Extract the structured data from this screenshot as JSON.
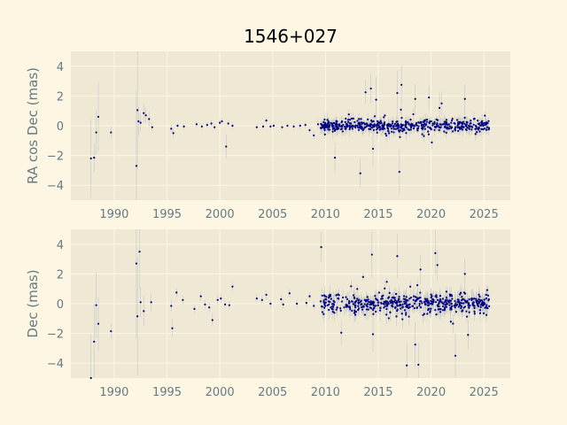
{
  "figure": {
    "title": "1546+027",
    "background": "#fdf6e3",
    "axes_face": "#eee8d5",
    "grid_color": "#fdf6e3",
    "point_color": "#000080",
    "errorbar_color": "#b7bcc0"
  },
  "chart_data": [
    {
      "type": "scatter",
      "ylabel": "RA cos Dec (mas)",
      "xlim": [
        1985.9,
        2027.5
      ],
      "ylim": [
        -5,
        5
      ],
      "grid": true,
      "xticks": [
        1990,
        1995,
        2000,
        2005,
        2010,
        2015,
        2020,
        2025
      ],
      "xtick_labels": [
        "1990",
        "1995",
        "2000",
        "2005",
        "2010",
        "2015",
        "2020",
        "2025"
      ],
      "yticks": [
        -4,
        -2,
        0,
        2,
        4
      ],
      "ytick_labels": [
        "−4",
        "−2",
        "0",
        "2",
        "4"
      ],
      "points": [
        {
          "x": 1987.8,
          "y": -2.2,
          "e": 2.6
        },
        {
          "x": 1988.1,
          "y": -2.15,
          "e": 1.0
        },
        {
          "x": 1988.3,
          "y": -0.45,
          "e": 1.5
        },
        {
          "x": 1988.5,
          "y": 0.6,
          "e": 2.3
        },
        {
          "x": 1989.7,
          "y": -0.45,
          "e": 0.4
        },
        {
          "x": 1992.1,
          "y": -2.7,
          "e": 5.0
        },
        {
          "x": 1992.2,
          "y": 1.05,
          "e": 4.0
        },
        {
          "x": 1992.3,
          "y": 0.3,
          "e": 1.0
        },
        {
          "x": 1992.5,
          "y": 0.2,
          "e": 0.6
        },
        {
          "x": 1992.8,
          "y": 0.85,
          "e": 0.6
        },
        {
          "x": 1993.0,
          "y": 0.7,
          "e": 0.5
        },
        {
          "x": 1993.3,
          "y": 0.45,
          "e": 0.5
        },
        {
          "x": 1993.6,
          "y": -0.1,
          "e": 0.3
        },
        {
          "x": 1995.4,
          "y": -0.2,
          "e": 0.3
        },
        {
          "x": 1995.6,
          "y": -0.5,
          "e": 0.3
        },
        {
          "x": 1996.0,
          "y": 0.0,
          "e": 0.2
        },
        {
          "x": 1996.6,
          "y": -0.05,
          "e": 0.2
        },
        {
          "x": 1997.8,
          "y": 0.1,
          "e": 0.2
        },
        {
          "x": 1998.3,
          "y": -0.05,
          "e": 0.2
        },
        {
          "x": 1998.8,
          "y": 0.05,
          "e": 0.2
        },
        {
          "x": 1999.2,
          "y": 0.15,
          "e": 0.2
        },
        {
          "x": 1999.5,
          "y": -0.1,
          "e": 0.2
        },
        {
          "x": 2000.0,
          "y": 0.2,
          "e": 0.2
        },
        {
          "x": 2000.2,
          "y": 0.3,
          "e": 0.2
        },
        {
          "x": 2000.6,
          "y": -1.4,
          "e": 0.8
        },
        {
          "x": 2000.8,
          "y": 0.15,
          "e": 0.2
        },
        {
          "x": 2001.2,
          "y": 0.0,
          "e": 0.2
        },
        {
          "x": 2003.5,
          "y": -0.1,
          "e": 0.2
        },
        {
          "x": 2004.1,
          "y": -0.05,
          "e": 0.2
        },
        {
          "x": 2004.4,
          "y": 0.35,
          "e": 0.2
        },
        {
          "x": 2004.8,
          "y": -0.05,
          "e": 0.2
        },
        {
          "x": 2005.1,
          "y": 0.0,
          "e": 0.2
        },
        {
          "x": 2005.9,
          "y": -0.1,
          "e": 0.2
        },
        {
          "x": 2006.4,
          "y": 0.0,
          "e": 0.2
        },
        {
          "x": 2007.0,
          "y": -0.05,
          "e": 0.2
        },
        {
          "x": 2007.6,
          "y": 0.0,
          "e": 0.2
        },
        {
          "x": 2008.1,
          "y": 0.05,
          "e": 0.2
        },
        {
          "x": 2008.5,
          "y": -0.3,
          "e": 0.2
        },
        {
          "x": 2008.9,
          "y": -0.65,
          "e": 0.3
        },
        {
          "x": 2009.3,
          "y": 0.1,
          "e": 0.3
        },
        {
          "x": 2010.9,
          "y": -2.15,
          "e": 1.0
        },
        {
          "x": 2013.3,
          "y": -3.2,
          "e": 1.0
        },
        {
          "x": 2013.8,
          "y": 2.25,
          "e": 0.8
        },
        {
          "x": 2014.3,
          "y": 2.5,
          "e": 1.0
        },
        {
          "x": 2014.5,
          "y": -1.55,
          "e": 1.2
        },
        {
          "x": 2014.8,
          "y": 1.75,
          "e": 1.5
        },
        {
          "x": 2016.8,
          "y": 2.2,
          "e": 1.5
        },
        {
          "x": 2017.0,
          "y": -3.1,
          "e": 1.5
        },
        {
          "x": 2017.2,
          "y": 2.75,
          "e": 1.3
        },
        {
          "x": 2018.5,
          "y": 1.8,
          "e": 1.0
        },
        {
          "x": 2019.8,
          "y": 1.9,
          "e": 0.8
        },
        {
          "x": 2020.8,
          "y": 1.2,
          "e": 1.0
        },
        {
          "x": 2021.0,
          "y": 1.5,
          "e": 0.8
        },
        {
          "x": 2023.2,
          "y": 1.8,
          "e": 1.0
        }
      ],
      "dense_data": {
        "x_start": 2009.5,
        "x_end": 2025.5,
        "count": 520,
        "spread": 0.18,
        "error": 0.35,
        "seed": 7
      }
    },
    {
      "type": "scatter",
      "ylabel": "Dec (mas)",
      "xlim": [
        1985.9,
        2027.5
      ],
      "ylim": [
        -5,
        5
      ],
      "grid": true,
      "xticks": [
        1990,
        1995,
        2000,
        2005,
        2010,
        2015,
        2020,
        2025
      ],
      "xtick_labels": [
        "1990",
        "1995",
        "2000",
        "2005",
        "2010",
        "2015",
        "2020",
        "2025"
      ],
      "yticks": [
        -4,
        -2,
        0,
        2,
        4
      ],
      "ytick_labels": [
        "−4",
        "−2",
        "0",
        "2",
        "4"
      ],
      "points": [
        {
          "x": 1987.8,
          "y": -5.0,
          "e": 3.0
        },
        {
          "x": 1988.1,
          "y": -2.55,
          "e": 2.6
        },
        {
          "x": 1988.3,
          "y": -0.1,
          "e": 2.2
        },
        {
          "x": 1988.5,
          "y": -1.35,
          "e": 1.8
        },
        {
          "x": 1989.7,
          "y": -1.85,
          "e": 0.5
        },
        {
          "x": 1992.1,
          "y": 2.7,
          "e": 5.0
        },
        {
          "x": 1992.2,
          "y": -0.85,
          "e": 4.0
        },
        {
          "x": 1992.4,
          "y": 3.5,
          "e": 2.5
        },
        {
          "x": 1992.5,
          "y": 0.1,
          "e": 1.0
        },
        {
          "x": 1992.8,
          "y": -0.5,
          "e": 1.0
        },
        {
          "x": 1993.5,
          "y": 0.1,
          "e": 0.6
        },
        {
          "x": 1995.4,
          "y": -0.15,
          "e": 0.4
        },
        {
          "x": 1995.5,
          "y": -1.65,
          "e": 0.6
        },
        {
          "x": 1995.9,
          "y": 0.75,
          "e": 0.3
        },
        {
          "x": 1996.5,
          "y": 0.25,
          "e": 0.3
        },
        {
          "x": 1997.6,
          "y": -0.35,
          "e": 0.3
        },
        {
          "x": 1998.2,
          "y": 0.5,
          "e": 0.3
        },
        {
          "x": 1998.6,
          "y": -0.05,
          "e": 0.3
        },
        {
          "x": 1999.0,
          "y": -0.25,
          "e": 0.3
        },
        {
          "x": 1999.3,
          "y": -1.1,
          "e": 0.4
        },
        {
          "x": 1999.8,
          "y": 0.25,
          "e": 0.3
        },
        {
          "x": 2000.1,
          "y": 0.35,
          "e": 0.3
        },
        {
          "x": 2000.5,
          "y": -0.05,
          "e": 0.3
        },
        {
          "x": 2000.9,
          "y": -0.1,
          "e": 0.3
        },
        {
          "x": 2001.2,
          "y": 1.15,
          "e": 0.3
        },
        {
          "x": 2003.5,
          "y": 0.35,
          "e": 0.3
        },
        {
          "x": 2004.0,
          "y": 0.25,
          "e": 0.3
        },
        {
          "x": 2004.4,
          "y": 0.6,
          "e": 0.3
        },
        {
          "x": 2004.8,
          "y": 0.0,
          "e": 0.3
        },
        {
          "x": 2005.8,
          "y": 0.3,
          "e": 0.3
        },
        {
          "x": 2006.0,
          "y": -0.05,
          "e": 0.3
        },
        {
          "x": 2006.6,
          "y": 0.7,
          "e": 0.3
        },
        {
          "x": 2007.3,
          "y": 0.0,
          "e": 0.3
        },
        {
          "x": 2008.2,
          "y": 0.05,
          "e": 0.3
        },
        {
          "x": 2008.5,
          "y": 0.5,
          "e": 0.3
        },
        {
          "x": 2008.9,
          "y": -0.15,
          "e": 0.3
        },
        {
          "x": 2009.6,
          "y": 3.8,
          "e": 1.0
        },
        {
          "x": 2011.5,
          "y": -1.95,
          "e": 0.8
        },
        {
          "x": 2014.4,
          "y": 3.3,
          "e": 1.5
        },
        {
          "x": 2014.5,
          "y": -2.05,
          "e": 1.2
        },
        {
          "x": 2016.8,
          "y": 3.2,
          "e": 1.5
        },
        {
          "x": 2017.7,
          "y": -4.15,
          "e": 1.5
        },
        {
          "x": 2018.5,
          "y": -2.75,
          "e": 1.5
        },
        {
          "x": 2018.8,
          "y": -4.1,
          "e": 1.5
        },
        {
          "x": 2019.0,
          "y": 2.3,
          "e": 1.0
        },
        {
          "x": 2020.4,
          "y": 3.4,
          "e": 1.5
        },
        {
          "x": 2020.6,
          "y": 2.6,
          "e": 1.0
        },
        {
          "x": 2022.3,
          "y": -3.5,
          "e": 1.5
        },
        {
          "x": 2023.2,
          "y": 2.0,
          "e": 1.0
        },
        {
          "x": 2023.5,
          "y": -2.1,
          "e": 1.0
        }
      ],
      "dense_data": {
        "x_start": 2009.5,
        "x_end": 2025.5,
        "count": 520,
        "spread": 0.3,
        "error": 0.5,
        "seed": 13
      }
    }
  ]
}
